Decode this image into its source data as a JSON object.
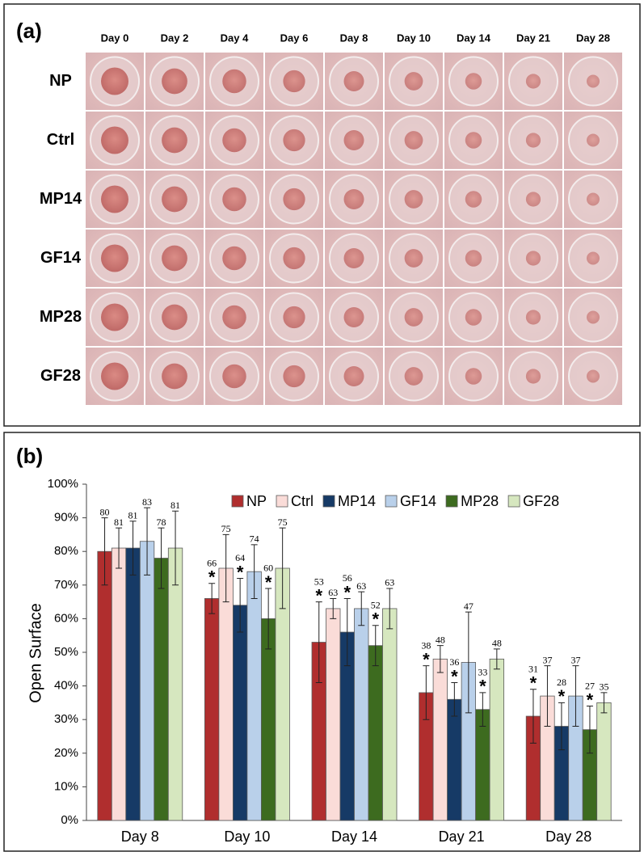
{
  "panel_a": {
    "label": "(a)",
    "columns": [
      "Day 0",
      "Day 2",
      "Day 4",
      "Day 6",
      "Day 8",
      "Day 10",
      "Day 14",
      "Day 21",
      "Day 28"
    ],
    "rows": [
      "NP",
      "Ctrl",
      "MP14",
      "GF14",
      "MP28",
      "GF28"
    ]
  },
  "chart_data": {
    "type": "bar",
    "panel_label": "(b)",
    "y_label": "Open Surface",
    "categories": [
      "Day 8",
      "Day 10",
      "Day 14",
      "Day 21",
      "Day 28"
    ],
    "series": [
      {
        "name": "NP",
        "color": "#b02e2e",
        "values": [
          80,
          66,
          53,
          38,
          31
        ],
        "errors": [
          10,
          4.5,
          12,
          8,
          8
        ],
        "significance": [
          null,
          "*",
          "*",
          "*",
          "*"
        ]
      },
      {
        "name": "Ctrl",
        "color": "#fadcd8",
        "values": [
          81,
          75,
          63,
          48,
          37
        ],
        "errors": [
          6,
          10,
          3,
          4,
          9
        ]
      },
      {
        "name": "MP14",
        "color": "#163a66",
        "values": [
          81,
          64,
          56,
          36,
          28
        ],
        "errors": [
          8,
          8,
          10,
          5,
          7
        ],
        "significance": [
          null,
          "*",
          "*",
          "*",
          "*"
        ]
      },
      {
        "name": "GF14",
        "color": "#b9d0ea",
        "values": [
          83,
          74,
          63,
          47,
          37
        ],
        "errors": [
          10,
          8,
          5,
          15,
          9
        ]
      },
      {
        "name": "MP28",
        "color": "#3d6b1f",
        "values": [
          78,
          60,
          52,
          33,
          27
        ],
        "errors": [
          9,
          9,
          6,
          5,
          7
        ],
        "significance": [
          null,
          "*",
          "*",
          "*",
          "*"
        ]
      },
      {
        "name": "GF28",
        "color": "#d6e7bf",
        "values": [
          81,
          75,
          63,
          48,
          35
        ],
        "errors": [
          11,
          12,
          6,
          3,
          3
        ]
      }
    ],
    "ylim": [
      0,
      100
    ],
    "yticks": [
      {
        "value": 0,
        "label": "0%"
      },
      {
        "value": 10,
        "label": "10%"
      },
      {
        "value": 20,
        "label": "20%"
      },
      {
        "value": 30,
        "label": "30%"
      },
      {
        "value": 40,
        "label": "40%"
      },
      {
        "value": 50,
        "label": "50%"
      },
      {
        "value": 60,
        "label": "60%"
      },
      {
        "value": 70,
        "label": "70%"
      },
      {
        "value": 80,
        "label": "80%"
      },
      {
        "value": 90,
        "label": "90%"
      },
      {
        "value": 100,
        "label": "100%"
      }
    ],
    "grid": false,
    "legend_position": "top-right"
  }
}
